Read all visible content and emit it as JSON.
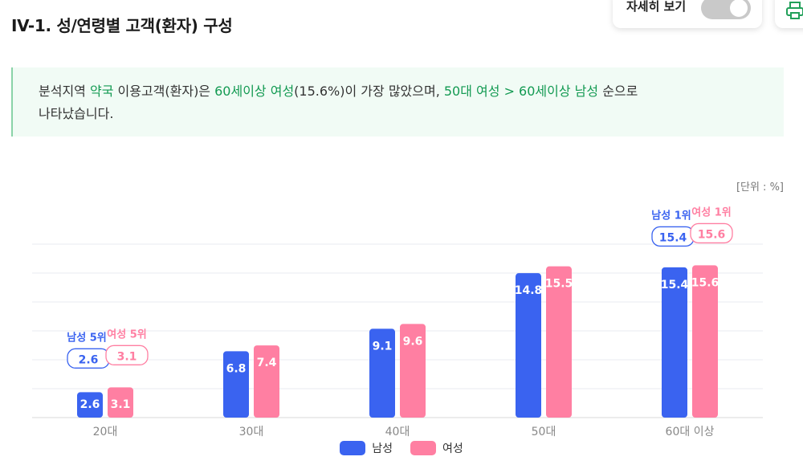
{
  "header": {
    "title": "IV-1. 성/연령별 고객(환자) 구성"
  },
  "toggle": {
    "label": "자세히 보기"
  },
  "summary": {
    "p1": "분석지역 ",
    "h1": "약국",
    "p2": " 이용고객(환자)은 ",
    "h2": "60세이상 여성",
    "p3": "(15.6%)이 가장 많았으며, ",
    "h3": "50대 여성 > 60세이상 남성",
    "p4": " 순으로",
    "p5": "나타났습니다."
  },
  "unit": "[단위 : %]",
  "colors": {
    "male": "#3a63f0",
    "female": "#ff7fa2",
    "accent": "#139a52"
  },
  "chart_data": {
    "type": "bar",
    "categories": [
      "20대",
      "30대",
      "40대",
      "50대",
      "60대 이상"
    ],
    "series": [
      {
        "name": "남성",
        "values": [
          2.6,
          6.8,
          9.1,
          14.8,
          15.4
        ]
      },
      {
        "name": "여성",
        "values": [
          3.1,
          7.4,
          9.6,
          15.5,
          15.6
        ]
      }
    ],
    "ylim": [
      0,
      20
    ],
    "grid": true,
    "legend": "bottom-center",
    "callouts": [
      {
        "category": "20대",
        "male_label": "남성 5위",
        "female_label": "여성 5위",
        "male_value": "2.6",
        "female_value": "3.1"
      },
      {
        "category": "60대 이상",
        "male_label": "남성 1위",
        "female_label": "여성 1위",
        "male_value": "15.4",
        "female_value": "15.6"
      }
    ]
  }
}
